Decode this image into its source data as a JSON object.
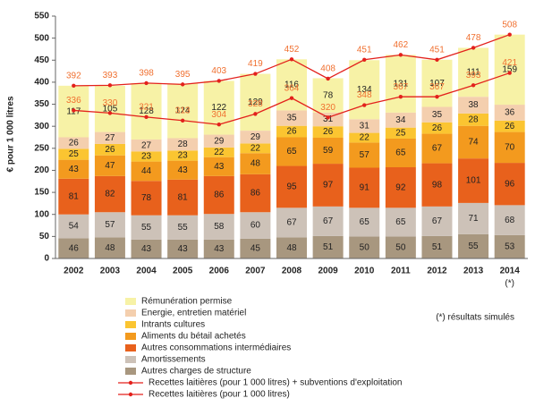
{
  "chart_data": {
    "type": "bar",
    "stacked": true,
    "ylabel": "€ pour 1 000 litres",
    "categories": [
      "2002",
      "2003",
      "2004",
      "2005",
      "2006",
      "2007",
      "2008",
      "2009",
      "2010",
      "2011",
      "2012",
      "2013",
      "2014"
    ],
    "category_note": "(*)",
    "annotation": "(*) résultats simulés",
    "ylim": [
      0,
      550
    ],
    "yticks": [
      0,
      50,
      100,
      150,
      200,
      250,
      300,
      350,
      400,
      450,
      500,
      550
    ],
    "series": [
      {
        "name": "Autres charges de structure",
        "color": "#a8977f",
        "values": [
          46,
          48,
          43,
          43,
          43,
          45,
          48,
          51,
          50,
          50,
          51,
          55,
          53
        ]
      },
      {
        "name": "Amortissements",
        "color": "#cdc2b8",
        "values": [
          54,
          57,
          55,
          55,
          58,
          60,
          67,
          67,
          65,
          65,
          67,
          71,
          68
        ]
      },
      {
        "name": "Autres consommations intermédiaires",
        "color": "#e8611c",
        "values": [
          81,
          82,
          78,
          81,
          86,
          86,
          95,
          97,
          91,
          92,
          98,
          101,
          96
        ]
      },
      {
        "name": "Aliments du bétail achetés",
        "color": "#f39a1e",
        "values": [
          43,
          47,
          44,
          43,
          43,
          48,
          65,
          59,
          57,
          65,
          67,
          74,
          70
        ]
      },
      {
        "name": "Intrants cultures",
        "color": "#fbc531",
        "values": [
          25,
          26,
          23,
          23,
          22,
          22,
          26,
          26,
          22,
          25,
          26,
          28,
          26
        ]
      },
      {
        "name": "Energie, entretien matériel",
        "color": "#f4cfae",
        "values": [
          26,
          27,
          27,
          28,
          29,
          29,
          35,
          31,
          31,
          34,
          35,
          38,
          36
        ]
      },
      {
        "name": "Rémunération permise",
        "color": "#f7f2a6",
        "values": [
          117,
          105,
          128,
          124,
          122,
          129,
          116,
          78,
          134,
          131,
          107,
          111,
          159
        ]
      },
      {
        "name": "Recettes laitières (pour 1 000 litres) + subventions d'exploitation",
        "type": "line",
        "color": "#e3211c",
        "values": [
          392,
          393,
          398,
          395,
          403,
          419,
          452,
          408,
          451,
          462,
          451,
          478,
          508
        ]
      },
      {
        "name": "Recettes laitières (pour 1 000 litres)",
        "type": "line",
        "color": "#e3211c",
        "values": [
          336,
          330,
          321,
          313,
          304,
          328,
          364,
          320,
          348,
          367,
          367,
          393,
          421
        ]
      }
    ]
  }
}
